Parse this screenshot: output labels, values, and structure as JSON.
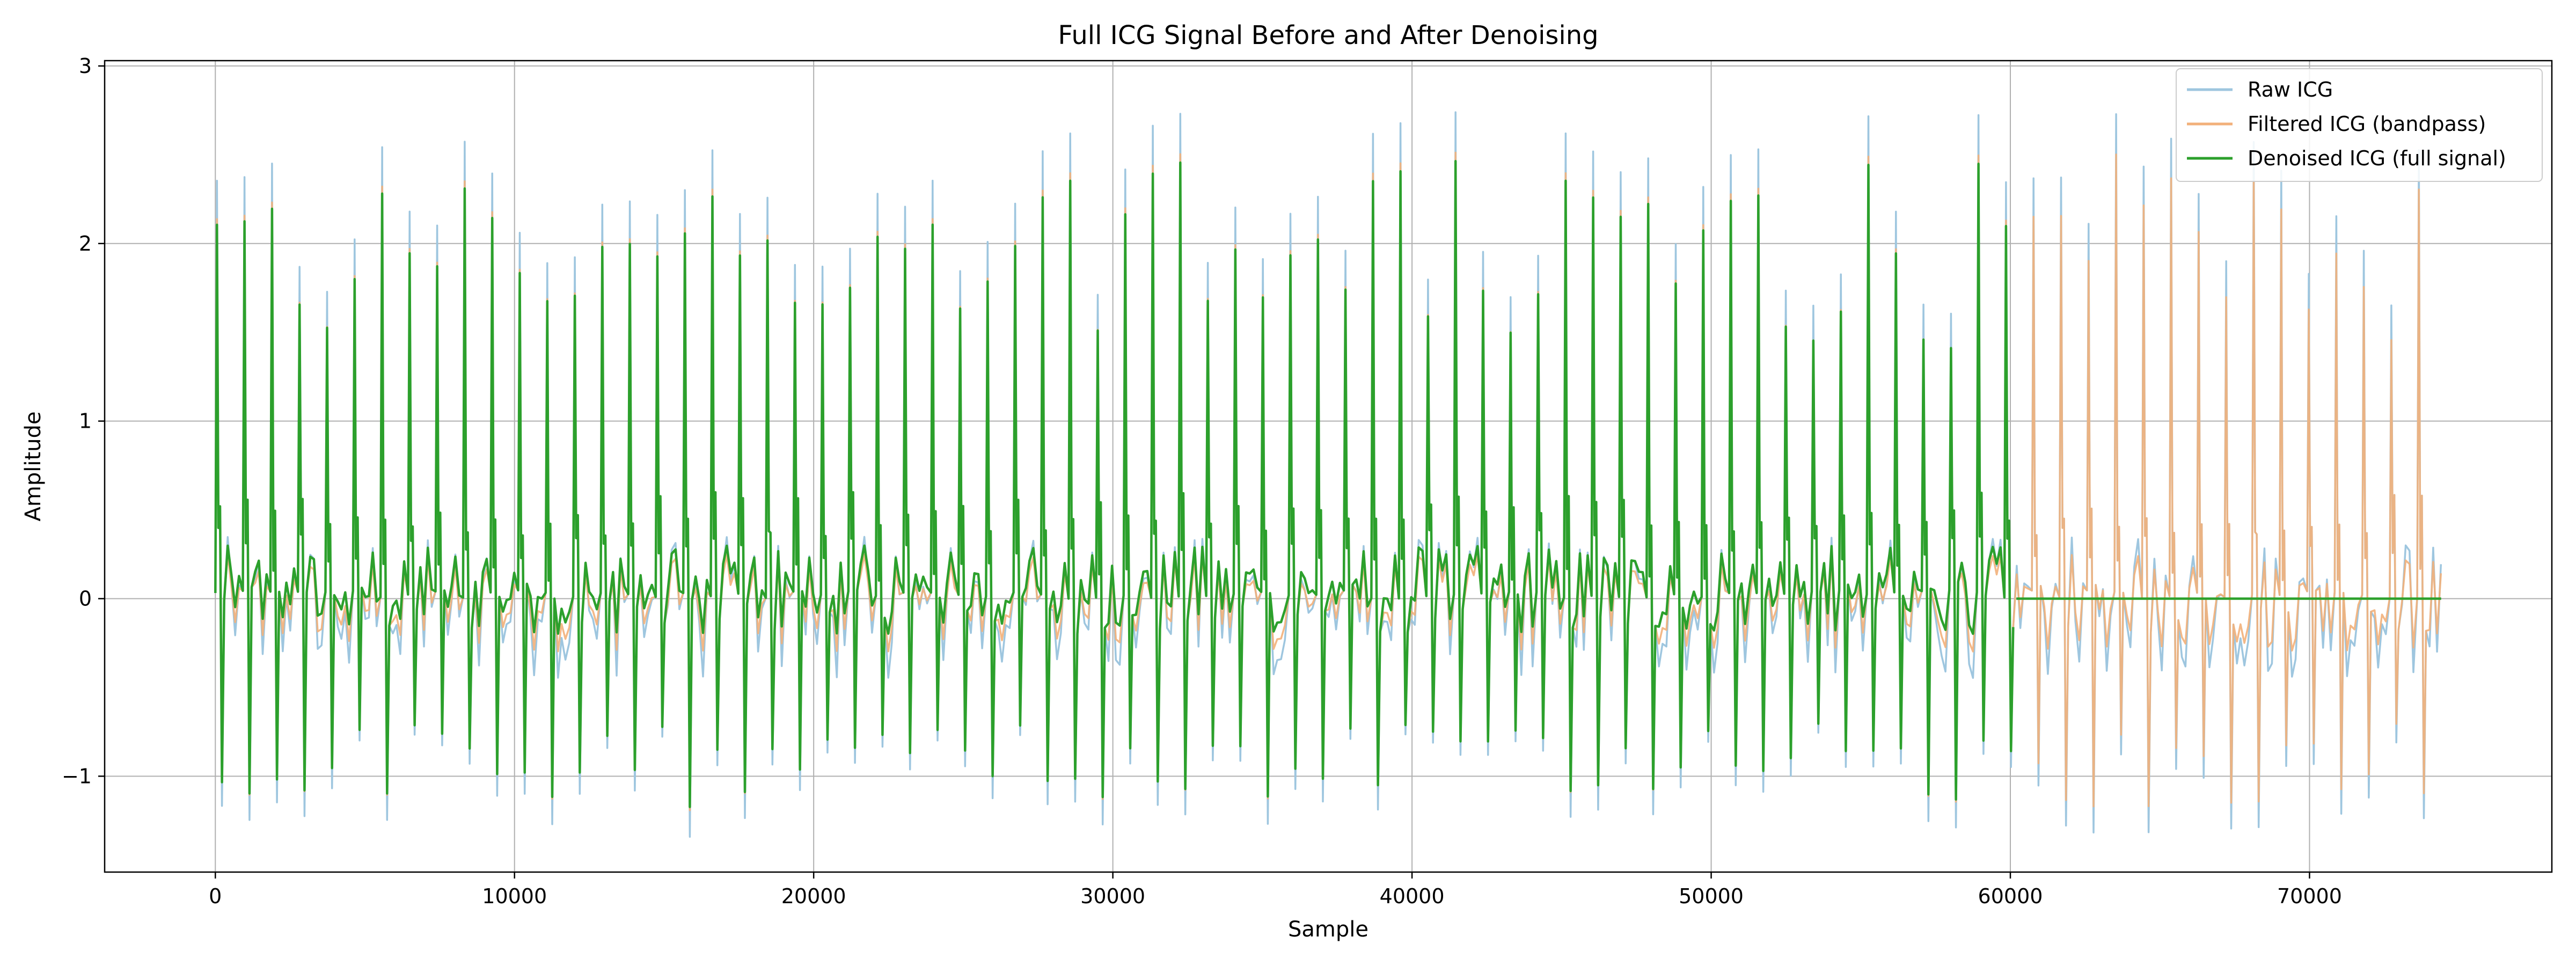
{
  "chart_data": {
    "type": "line",
    "title": "Full ICG Signal Before and After Denoising",
    "xlabel": "Sample",
    "ylabel": "Amplitude",
    "xlim": [
      -3700,
      78100
    ],
    "ylim": [
      -1.54,
      3.03
    ],
    "xticks": [
      0,
      10000,
      20000,
      30000,
      40000,
      50000,
      60000,
      70000
    ],
    "xtick_labels": [
      "0",
      "10000",
      "20000",
      "30000",
      "40000",
      "50000",
      "60000",
      "70000"
    ],
    "yticks": [
      -1,
      0,
      1,
      2,
      3
    ],
    "ytick_labels": [
      "−1",
      "0",
      "1",
      "2",
      "3"
    ],
    "grid": true,
    "legend_position": "top-right",
    "n_samples": 74500,
    "beat_period_samples": 920,
    "series": [
      {
        "name": "Raw ICG",
        "color": "#9ec6df",
        "peak_range": [
          1.6,
          2.75
        ],
        "trough_range": [
          -1.35,
          -0.75
        ],
        "baseline_range": [
          -0.45,
          0.35
        ],
        "extent": [
          0,
          74400
        ]
      },
      {
        "name": "Filtered ICG (bandpass)",
        "color": "#f2b07a",
        "peak_range": [
          1.45,
          2.6
        ],
        "trough_range": [
          -1.2,
          -0.65
        ],
        "baseline_range": [
          -0.3,
          0.25
        ],
        "extent": [
          0,
          74400
        ]
      },
      {
        "name": "Denoised ICG (full signal)",
        "color": "#2ca02c",
        "peak_range": [
          1.45,
          2.55
        ],
        "trough_range": [
          -1.18,
          -0.7
        ],
        "baseline_range": [
          -0.2,
          0.3
        ],
        "extent": [
          0,
          60200
        ],
        "flat_after": 60200,
        "flat_value": 0,
        "flat_extent": [
          60200,
          74400
        ]
      }
    ]
  }
}
